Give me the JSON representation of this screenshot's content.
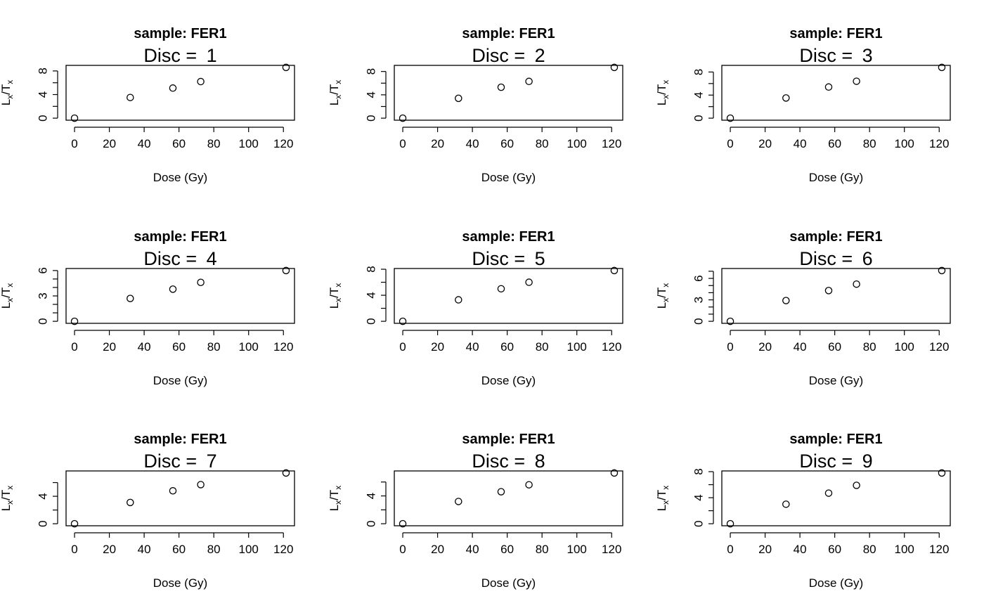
{
  "figure": {
    "panel_layout": {
      "rows": 3,
      "cols": 3
    }
  },
  "chart_data": [
    {
      "type": "scatter",
      "title": "sample: FER1",
      "subtitle": [
        "Disc = ",
        "1"
      ],
      "xlabel": "Dose (Gy)",
      "ylabel": {
        "main": [
          "L",
          "/T"
        ],
        "sub": "x"
      },
      "x": [
        0,
        32,
        56.5,
        72.5,
        121.5
      ],
      "y": [
        0,
        3.5,
        5.1,
        6.2,
        8.6
      ],
      "xticks": [
        0,
        20,
        40,
        60,
        80,
        100,
        120
      ],
      "yticks": [
        0,
        4,
        8
      ],
      "yminor": [
        2,
        6
      ],
      "xlim": [
        -4.86,
        126.36
      ],
      "ylim": [
        -0.344,
        8.944
      ],
      "grid": false,
      "legend": "none"
    },
    {
      "type": "scatter",
      "title": "sample: FER1",
      "subtitle": [
        "Disc = ",
        "2"
      ],
      "xlabel": "Dose (Gy)",
      "ylabel": {
        "main": [
          "L",
          "/T"
        ],
        "sub": "x"
      },
      "x": [
        0,
        32,
        56.5,
        72.5,
        121.5
      ],
      "y": [
        0,
        3.4,
        5.3,
        6.3,
        8.7
      ],
      "xticks": [
        0,
        20,
        40,
        60,
        80,
        100,
        120
      ],
      "yticks": [
        0,
        4,
        8
      ],
      "yminor": [
        2,
        6
      ],
      "xlim": [
        -4.86,
        126.36
      ],
      "ylim": [
        -0.348,
        9.048
      ],
      "grid": false,
      "legend": "none"
    },
    {
      "type": "scatter",
      "title": "sample: FER1",
      "subtitle": [
        "Disc = ",
        "3"
      ],
      "xlabel": "Dose (Gy)",
      "ylabel": {
        "main": [
          "L",
          "/T"
        ],
        "sub": "x"
      },
      "x": [
        0,
        32,
        56.5,
        72.5,
        121.5
      ],
      "y": [
        0,
        3.5,
        5.4,
        6.4,
        8.8
      ],
      "xticks": [
        0,
        20,
        40,
        60,
        80,
        100,
        120
      ],
      "yticks": [
        0,
        4,
        8
      ],
      "yminor": [
        2,
        6
      ],
      "xlim": [
        -4.86,
        126.36
      ],
      "ylim": [
        -0.352,
        9.152
      ],
      "grid": false,
      "legend": "none"
    },
    {
      "type": "scatter",
      "title": "sample: FER1",
      "subtitle": [
        "Disc = ",
        "4"
      ],
      "xlabel": "Dose (Gy)",
      "ylabel": {
        "main": [
          "L",
          "/T"
        ],
        "sub": "x"
      },
      "x": [
        0,
        32,
        56.5,
        72.5,
        121.5
      ],
      "y": [
        0,
        2.7,
        3.8,
        4.6,
        6.0
      ],
      "xticks": [
        0,
        20,
        40,
        60,
        80,
        100,
        120
      ],
      "yticks": [
        0,
        3,
        6
      ],
      "yminor": [
        1,
        2,
        4,
        5
      ],
      "xlim": [
        -4.86,
        126.36
      ],
      "ylim": [
        -0.24,
        6.24
      ],
      "grid": false,
      "legend": "none"
    },
    {
      "type": "scatter",
      "title": "sample: FER1",
      "subtitle": [
        "Disc = ",
        "5"
      ],
      "xlabel": "Dose (Gy)",
      "ylabel": {
        "main": [
          "L",
          "/T"
        ],
        "sub": "x"
      },
      "x": [
        0,
        32,
        56.5,
        72.5,
        121.5
      ],
      "y": [
        0,
        3.3,
        5.0,
        6.0,
        7.8
      ],
      "xticks": [
        0,
        20,
        40,
        60,
        80,
        100,
        120
      ],
      "yticks": [
        0,
        4,
        8
      ],
      "yminor": [
        2,
        6
      ],
      "xlim": [
        -4.86,
        126.36
      ],
      "ylim": [
        -0.312,
        8.112
      ],
      "grid": false,
      "legend": "none"
    },
    {
      "type": "scatter",
      "title": "sample: FER1",
      "subtitle": [
        "Disc = ",
        "6"
      ],
      "xlabel": "Dose (Gy)",
      "ylabel": {
        "main": [
          "L",
          "/T"
        ],
        "sub": "x"
      },
      "x": [
        0,
        32,
        56.5,
        72.5,
        121.5
      ],
      "y": [
        0,
        2.9,
        4.3,
        5.2,
        7.1
      ],
      "xticks": [
        0,
        20,
        40,
        60,
        80,
        100,
        120
      ],
      "yticks": [
        0,
        3,
        6
      ],
      "yminor": [
        1,
        2,
        4,
        5,
        7
      ],
      "xlim": [
        -4.86,
        126.36
      ],
      "ylim": [
        -0.284,
        7.384
      ],
      "grid": false,
      "legend": "none"
    },
    {
      "type": "scatter",
      "title": "sample: FER1",
      "subtitle": [
        "Disc = ",
        "7"
      ],
      "xlabel": "Dose (Gy)",
      "ylabel": {
        "main": [
          "L",
          "/T"
        ],
        "sub": "x"
      },
      "x": [
        0,
        32,
        56.5,
        72.5,
        121.5
      ],
      "y": [
        0,
        3.1,
        4.8,
        5.7,
        7.4
      ],
      "xticks": [
        0,
        20,
        40,
        60,
        80,
        100,
        120
      ],
      "yticks": [
        0,
        4
      ],
      "yminor": [
        2,
        6
      ],
      "xlim": [
        -4.86,
        126.36
      ],
      "ylim": [
        -0.296,
        7.696
      ],
      "grid": false,
      "legend": "none"
    },
    {
      "type": "scatter",
      "title": "sample: FER1",
      "subtitle": [
        "Disc = ",
        "8"
      ],
      "xlabel": "Dose (Gy)",
      "ylabel": {
        "main": [
          "L",
          "/T"
        ],
        "sub": "x"
      },
      "x": [
        0,
        32,
        56.5,
        72.5,
        121.5
      ],
      "y": [
        0,
        3.2,
        4.6,
        5.6,
        7.3
      ],
      "xticks": [
        0,
        20,
        40,
        60,
        80,
        100,
        120
      ],
      "yticks": [
        0,
        4
      ],
      "yminor": [
        2,
        6
      ],
      "xlim": [
        -4.86,
        126.36
      ],
      "ylim": [
        -0.292,
        7.592
      ],
      "grid": false,
      "legend": "none"
    },
    {
      "type": "scatter",
      "title": "sample: FER1",
      "subtitle": [
        "Disc = ",
        "9"
      ],
      "xlabel": "Dose (Gy)",
      "ylabel": {
        "main": [
          "L",
          "/T"
        ],
        "sub": "x"
      },
      "x": [
        0,
        32,
        56.5,
        72.5,
        121.5
      ],
      "y": [
        0,
        3.0,
        4.7,
        5.9,
        7.8
      ],
      "xticks": [
        0,
        20,
        40,
        60,
        80,
        100,
        120
      ],
      "yticks": [
        0,
        4,
        8
      ],
      "yminor": [
        2,
        6
      ],
      "xlim": [
        -4.86,
        126.36
      ],
      "ylim": [
        -0.312,
        8.112
      ],
      "grid": false,
      "legend": "none"
    }
  ]
}
